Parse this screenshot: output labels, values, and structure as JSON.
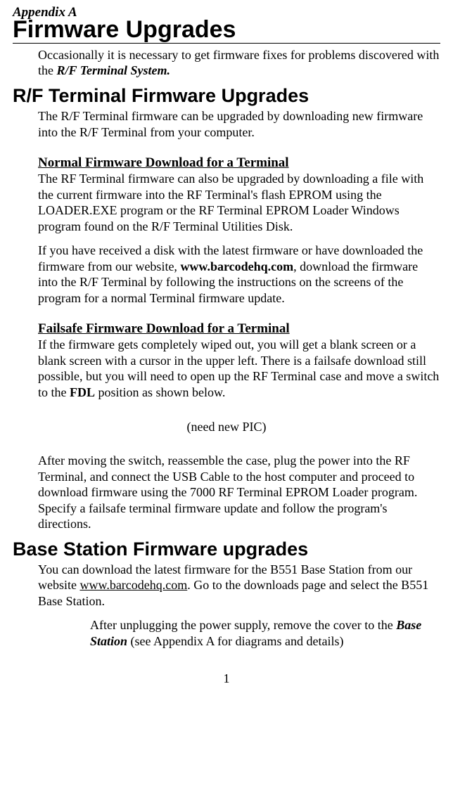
{
  "appendix_label": "Appendix A",
  "page_title": "Firmware Upgrades",
  "intro": {
    "pre": "Occasionally it is necessary to get firmware fixes for problems discovered with the ",
    "bold_ital": "R/F Terminal System."
  },
  "section_rf": {
    "heading": "R/F Terminal Firmware Upgrades",
    "p1": "The R/F Terminal firmware can be upgraded by downloading new firmware into the R/F Terminal from your computer.",
    "sub_normal": "Normal Firmware Download for a Terminal",
    "p2": "The RF Terminal firmware can also be upgraded by downloading a file with the current firmware into the RF Terminal's flash EPROM using the LOADER.EXE program or the RF Terminal EPROM Loader Windows program found on the R/F Terminal Utilities Disk.",
    "p3_pre": "If you have received a disk with the latest firmware or have downloaded the firmware from our website, ",
    "p3_bold": "www.barcodehq.com",
    "p3_post": ", download the firmware into the R/F Terminal by following the instructions on the screens of the program for a normal Terminal firmware update.",
    "sub_failsafe": "Failsafe Firmware Download for a Terminal",
    "p4_pre": "If the firmware gets completely wiped out, you will get a blank screen or a blank screen with a cursor in the upper left. There is a failsafe download still possible, but you will need to open up the RF Terminal case and move a switch to the ",
    "p4_bold": "FDL",
    "p4_post": " position as shown below.",
    "pic_note": "(need new PIC)",
    "p5": "After moving the switch, reassemble the case, plug the power into the RF Terminal, and connect the USB Cable to the host computer and proceed to download firmware using the 7000 RF Terminal EPROM Loader program. Specify a failsafe terminal firmware update and follow the program's directions."
  },
  "section_base": {
    "heading": "Base Station Firmware upgrades",
    "p1_pre": "You can download the latest firmware for the B551 Base Station from our website ",
    "p1_link": "www.barcodehq.com",
    "p1_post": ". Go to the downloads page and select the B551 Base Station.",
    "p2_pre": "After unplugging the power supply, remove the cover to the ",
    "p2_bold_ital": "Base Station",
    "p2_post": " (see Appendix A for diagrams and details)"
  },
  "page_number": "1"
}
